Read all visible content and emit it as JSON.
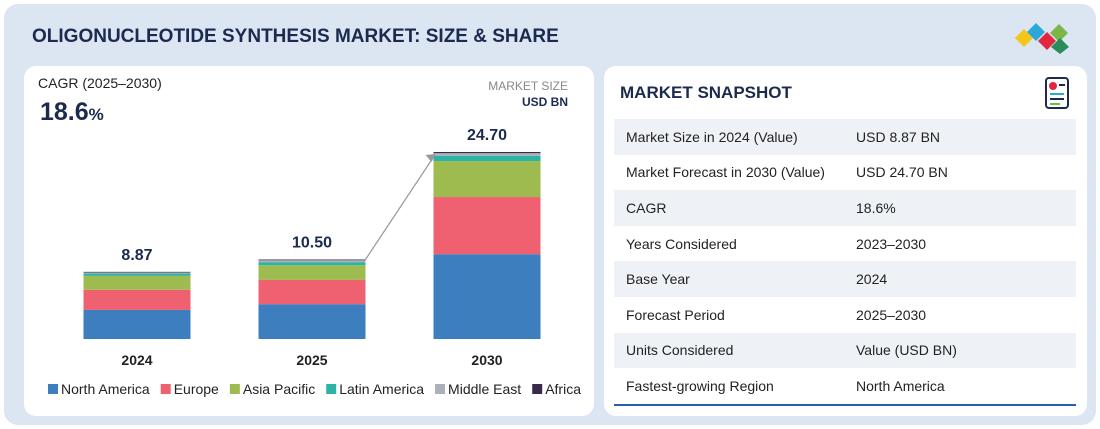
{
  "header": {
    "title": "OLIGONUCLEOTIDE SYNTHESIS MARKET: SIZE & SHARE"
  },
  "chart_data": {
    "type": "stacked_bar",
    "cagr": {
      "label": "CAGR (2025–2030)",
      "value": "18.6",
      "unit": "%"
    },
    "unit_label": {
      "line1": "MARKET SIZE",
      "line2": "USD BN"
    },
    "categories": [
      "2024",
      "2025",
      "2030"
    ],
    "series": [
      {
        "name": "North America",
        "color": "#3d7ebf",
        "values": [
          3.84,
          4.6,
          11.2
        ]
      },
      {
        "name": "Europe",
        "color": "#ef6070",
        "values": [
          2.65,
          3.2,
          7.55
        ]
      },
      {
        "name": "Asia Pacific",
        "color": "#9dbb4e",
        "values": [
          1.85,
          1.95,
          4.75
        ]
      },
      {
        "name": "Latin America",
        "color": "#2bb3a5",
        "values": [
          0.3,
          0.4,
          0.7
        ]
      },
      {
        "name": "Middle East",
        "color": "#aab0b8",
        "values": [
          0.15,
          0.25,
          0.35
        ]
      },
      {
        "name": "Africa",
        "color": "#3a2a4a",
        "values": [
          0.08,
          0.1,
          0.15
        ]
      }
    ],
    "totals": {
      "values": [
        8.87,
        10.5,
        24.7
      ],
      "value_labels": [
        "8.87",
        "10.50",
        "24.70"
      ]
    }
  },
  "snapshot": {
    "title": "MARKET SNAPSHOT",
    "rows": [
      [
        "Market Size in 2024 (Value)",
        "USD 8.87 BN"
      ],
      [
        "Market Forecast in 2030 (Value)",
        "USD 24.70 BN"
      ],
      [
        "CAGR",
        "18.6%"
      ],
      [
        "Years Considered",
        "2023–2030"
      ],
      [
        "Base Year",
        "2024"
      ],
      [
        "Forecast Period",
        "2025–2030"
      ],
      [
        "Units Considered",
        "Value (USD BN)"
      ],
      [
        "Fastest-growing Region",
        "North America"
      ]
    ]
  }
}
